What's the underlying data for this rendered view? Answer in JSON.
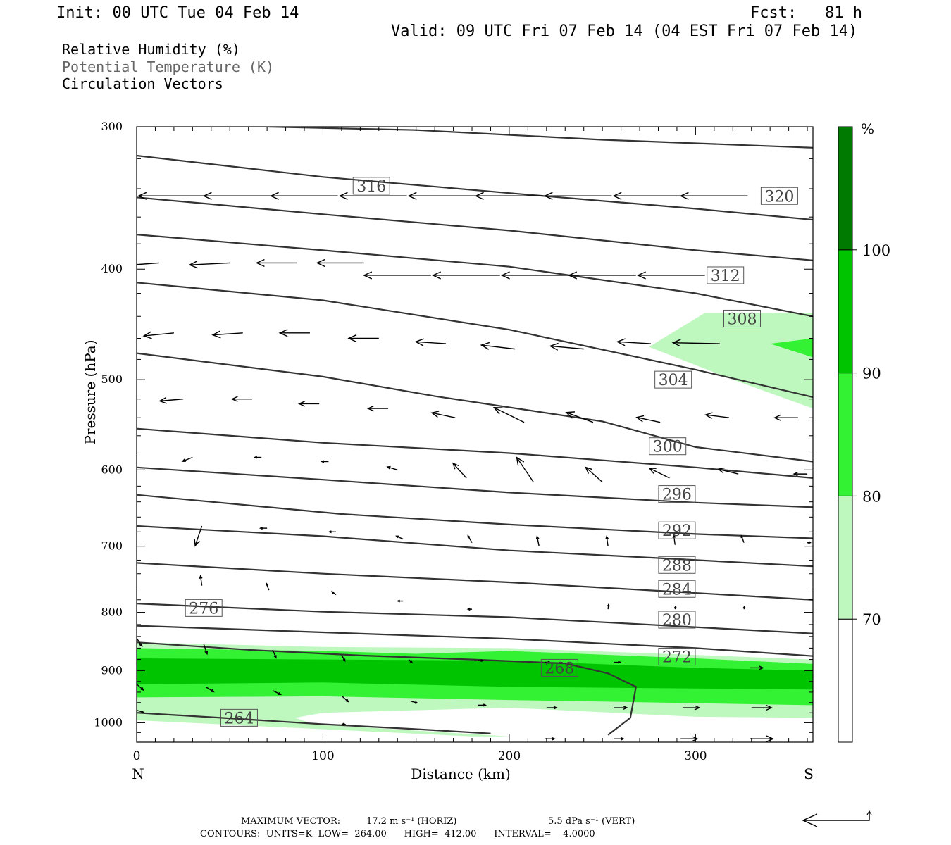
{
  "header": {
    "init": "Init: 00 UTC Tue 04 Feb 14",
    "fcst": "Fcst:   81 h",
    "valid": "Valid: 09 UTC Fri 07 Feb 14 (04 EST Fri 07 Feb 14)"
  },
  "legend": {
    "rh": "Relative Humidity (%)",
    "theta": "Potential Temperature (K)",
    "vectors": "Circulation Vectors"
  },
  "chart_data": {
    "type": "cross-section",
    "xlabel": "Distance (km)",
    "ylabel": "Pressure (hPa)",
    "xlim": [
      0,
      363
    ],
    "ylim": [
      1040,
      300
    ],
    "y_scale": "log",
    "x_ticks": [
      0,
      100,
      200,
      300
    ],
    "x_tick_labels": [
      "0",
      "100",
      "200",
      "300"
    ],
    "y_ticks": [
      300,
      400,
      500,
      600,
      700,
      800,
      900,
      1000
    ],
    "y_tick_labels": [
      "300",
      "400",
      "500",
      "600",
      "700",
      "800",
      "900",
      "1000"
    ],
    "end_labels": {
      "left": "N",
      "right": "S"
    },
    "colorbar": {
      "unit": "%",
      "levels": [
        70,
        80,
        90,
        100
      ],
      "level_labels": [
        "70",
        "80",
        "90",
        "100"
      ],
      "colors": [
        "#ffffff",
        "#bff8bf",
        "#33f133",
        "#00c400",
        "#007a00"
      ]
    },
    "theta_contours": [
      {
        "label": "264",
        "label_x": 55,
        "label_p": 990,
        "points": [
          [
            0,
            980
          ],
          [
            50,
            991
          ],
          [
            100,
            1003
          ],
          [
            150,
            1013
          ],
          [
            190,
            1022
          ]
        ]
      },
      {
        "label": "268",
        "label_x": 227,
        "label_p": 895,
        "points": [
          [
            0,
            850
          ],
          [
            60,
            863
          ],
          [
            120,
            873
          ],
          [
            180,
            880
          ],
          [
            230,
            887
          ],
          [
            253,
            905
          ],
          [
            268,
            930
          ],
          [
            265,
            990
          ],
          [
            253,
            1025
          ]
        ]
      },
      {
        "label": "272",
        "label_x": 290,
        "label_p": 875,
        "points": [
          [
            0,
            822
          ],
          [
            100,
            833
          ],
          [
            200,
            844
          ],
          [
            300,
            860
          ],
          [
            363,
            874
          ]
        ]
      },
      {
        "label": "276",
        "label_x": 36,
        "label_p": 793,
        "points": [
          [
            0,
            786
          ],
          [
            100,
            799
          ],
          [
            200,
            808
          ],
          [
            280,
            821
          ],
          [
            363,
            835
          ]
        ]
      },
      {
        "label": "280",
        "label_x": 290,
        "label_p": 812,
        "points": [
          [
            0,
            724
          ],
          [
            100,
            740
          ],
          [
            200,
            753
          ],
          [
            280,
            766
          ],
          [
            363,
            780
          ]
        ]
      },
      {
        "label": "284",
        "label_x": 290,
        "label_p": 763,
        "points": [
          [
            0,
            672
          ],
          [
            100,
            686
          ],
          [
            200,
            706
          ],
          [
            280,
            717
          ],
          [
            363,
            729
          ]
        ]
      },
      {
        "label": "288",
        "label_x": 290,
        "label_p": 727,
        "points": [
          [
            0,
            631
          ],
          [
            110,
            656
          ],
          [
            200,
            670
          ],
          [
            300,
            683
          ],
          [
            363,
            689
          ]
        ]
      },
      {
        "label": "292",
        "label_x": 290,
        "label_p": 678,
        "points": [
          [
            0,
            597
          ],
          [
            100,
            612
          ],
          [
            200,
            628
          ],
          [
            300,
            641
          ],
          [
            363,
            647
          ]
        ]
      },
      {
        "label": "296",
        "label_x": 290,
        "label_p": 630,
        "points": [
          [
            0,
            552
          ],
          [
            100,
            568
          ],
          [
            200,
            580
          ],
          [
            300,
            597
          ],
          [
            363,
            610
          ]
        ]
      },
      {
        "label": "300",
        "label_x": 285,
        "label_p": 572,
        "points": [
          [
            0,
            474
          ],
          [
            100,
            497
          ],
          [
            160,
            517
          ],
          [
            250,
            544
          ],
          [
            300,
            573
          ],
          [
            363,
            590
          ]
        ]
      },
      {
        "label": "304",
        "label_x": 288,
        "label_p": 500,
        "points": [
          [
            0,
            411
          ],
          [
            100,
            426
          ],
          [
            200,
            452
          ],
          [
            300,
            490
          ],
          [
            363,
            518
          ]
        ]
      },
      {
        "label": "308",
        "label_x": 325,
        "label_p": 442,
        "points": [
          [
            0,
            373
          ],
          [
            100,
            385
          ],
          [
            200,
            398
          ],
          [
            300,
            420
          ],
          [
            363,
            440
          ]
        ]
      },
      {
        "label": "312",
        "label_x": 316,
        "label_p": 405,
        "points": [
          [
            0,
            346
          ],
          [
            100,
            358
          ],
          [
            200,
            370
          ],
          [
            300,
            385
          ],
          [
            363,
            393
          ]
        ]
      },
      {
        "label": "316",
        "label_x": 126,
        "label_p": 338,
        "points": [
          [
            0,
            318
          ],
          [
            100,
            332
          ],
          [
            200,
            343
          ],
          [
            300,
            354
          ],
          [
            363,
            362
          ]
        ]
      },
      {
        "label": "320",
        "label_x": 345,
        "label_p": 345,
        "points": [
          [
            70,
            300
          ],
          [
            150,
            302
          ],
          [
            250,
            308
          ],
          [
            363,
            313
          ]
        ]
      }
    ],
    "rh_regions": [
      {
        "level": 70,
        "shape": "lower-band",
        "outline": [
          [
            0,
            850
          ],
          [
            100,
            858
          ],
          [
            200,
            860
          ],
          [
            300,
            872
          ],
          [
            363,
            880
          ],
          [
            363,
            990
          ],
          [
            300,
            988
          ],
          [
            200,
            970
          ],
          [
            100,
            980
          ],
          [
            85,
            990
          ],
          [
            95,
            1003
          ],
          [
            200,
            1028
          ],
          [
            180,
            1028
          ],
          [
            0,
            995
          ]
        ]
      },
      {
        "level": 80,
        "shape": "lower-band",
        "outline": [
          [
            0,
            860
          ],
          [
            100,
            865
          ],
          [
            150,
            870
          ],
          [
            200,
            865
          ],
          [
            300,
            878
          ],
          [
            363,
            888
          ],
          [
            363,
            965
          ],
          [
            200,
            955
          ],
          [
            100,
            948
          ],
          [
            0,
            950
          ]
        ]
      },
      {
        "level": 90,
        "shape": "lower-band",
        "outline": [
          [
            0,
            878
          ],
          [
            100,
            880
          ],
          [
            200,
            882
          ],
          [
            300,
            895
          ],
          [
            363,
            900
          ],
          [
            363,
            935
          ],
          [
            200,
            930
          ],
          [
            100,
            922
          ],
          [
            0,
            925
          ]
        ]
      },
      {
        "level": 70,
        "shape": "upper-tongue",
        "outline": [
          [
            363,
            437
          ],
          [
            305,
            437
          ],
          [
            275,
            468
          ],
          [
            320,
            500
          ],
          [
            363,
            530
          ]
        ]
      },
      {
        "level": 80,
        "shape": "upper-tongue",
        "outline": [
          [
            363,
            460
          ],
          [
            340,
            465
          ],
          [
            363,
            478
          ]
        ]
      }
    ],
    "vectors": [
      {
        "x": 0,
        "p": 345,
        "u": -10.0,
        "w": 0.4
      },
      {
        "x": 37,
        "p": 345,
        "u": -10.0,
        "w": 0
      },
      {
        "x": 72,
        "p": 345,
        "u": -10.0,
        "w": 0
      },
      {
        "x": 108,
        "p": 345,
        "u": -10.0,
        "w": 0
      },
      {
        "x": 145,
        "p": 345,
        "u": -10.0,
        "w": 0
      },
      {
        "x": 182,
        "p": 345,
        "u": -10.0,
        "w": 0
      },
      {
        "x": 218,
        "p": 345,
        "u": -10.0,
        "w": 0
      },
      {
        "x": 255,
        "p": 345,
        "u": -10.0,
        "w": 0
      },
      {
        "x": 292,
        "p": 345,
        "u": -10.0,
        "w": 0
      },
      {
        "x": 328,
        "p": 345,
        "u": -10.0,
        "w": 0
      },
      {
        "x": 12,
        "p": 395,
        "u": -6.0,
        "w": 0.3
      },
      {
        "x": 50,
        "p": 395,
        "u": -6.0,
        "w": 0.2
      },
      {
        "x": 86,
        "p": 395,
        "u": -6.0,
        "w": 0
      },
      {
        "x": 122,
        "p": 395,
        "u": -7.0,
        "w": 0
      },
      {
        "x": 158,
        "p": 405,
        "u": -10.0,
        "w": 0
      },
      {
        "x": 195,
        "p": 405,
        "u": -10.0,
        "w": 0
      },
      {
        "x": 232,
        "p": 405,
        "u": -10.0,
        "w": 0
      },
      {
        "x": 268,
        "p": 405,
        "u": -10.0,
        "w": 0
      },
      {
        "x": 305,
        "p": 405,
        "u": -10.0,
        "w": 0
      },
      {
        "x": 20,
        "p": 455,
        "u": -4.5,
        "w": 0.3
      },
      {
        "x": 57,
        "p": 455,
        "u": -4.5,
        "w": 0.2
      },
      {
        "x": 93,
        "p": 455,
        "u": -4.5,
        "w": 0
      },
      {
        "x": 130,
        "p": 460,
        "u": -4.5,
        "w": 0
      },
      {
        "x": 166,
        "p": 465,
        "u": -4.5,
        "w": -0.2
      },
      {
        "x": 203,
        "p": 470,
        "u": -5.0,
        "w": -0.4
      },
      {
        "x": 240,
        "p": 470,
        "u": -5.0,
        "w": -0.3
      },
      {
        "x": 276,
        "p": 465,
        "u": -5.0,
        "w": -0.2
      },
      {
        "x": 313,
        "p": 465,
        "u": -7.0,
        "w": -0.1
      },
      {
        "x": 25,
        "p": 520,
        "u": -3.5,
        "w": 0.2
      },
      {
        "x": 62,
        "p": 520,
        "u": -3.0,
        "w": 0
      },
      {
        "x": 98,
        "p": 525,
        "u": -3.0,
        "w": 0
      },
      {
        "x": 135,
        "p": 530,
        "u": -3.0,
        "w": 0
      },
      {
        "x": 171,
        "p": 540,
        "u": -3.5,
        "w": -0.5
      },
      {
        "x": 208,
        "p": 545,
        "u": -4.5,
        "w": -1.5
      },
      {
        "x": 245,
        "p": 545,
        "u": -4.0,
        "w": -1.0
      },
      {
        "x": 281,
        "p": 545,
        "u": -3.5,
        "w": -0.5
      },
      {
        "x": 318,
        "p": 540,
        "u": -3.5,
        "w": -0.3
      },
      {
        "x": 355,
        "p": 540,
        "u": -3.5,
        "w": 0
      },
      {
        "x": 30,
        "p": 585,
        "u": -1.5,
        "w": 0.4
      },
      {
        "x": 67,
        "p": 585,
        "u": -1.0,
        "w": 0
      },
      {
        "x": 103,
        "p": 590,
        "u": -1.0,
        "w": 0
      },
      {
        "x": 140,
        "p": 600,
        "u": -1.5,
        "w": -0.3
      },
      {
        "x": 177,
        "p": 610,
        "u": -2.0,
        "w": -1.5
      },
      {
        "x": 213,
        "p": 615,
        "u": -2.5,
        "w": -2.5
      },
      {
        "x": 250,
        "p": 615,
        "u": -2.5,
        "w": -1.5
      },
      {
        "x": 286,
        "p": 610,
        "u": -3.0,
        "w": -1.0
      },
      {
        "x": 323,
        "p": 605,
        "u": -3.0,
        "w": -0.5
      },
      {
        "x": 360,
        "p": 605,
        "u": -2.0,
        "w": 0
      },
      {
        "x": 35,
        "p": 672,
        "u": -1.0,
        "w": 2.0
      },
      {
        "x": 70,
        "p": 675,
        "u": -1.0,
        "w": 0
      },
      {
        "x": 107,
        "p": 680,
        "u": -1.0,
        "w": 0
      },
      {
        "x": 143,
        "p": 690,
        "u": -1.0,
        "w": -0.3
      },
      {
        "x": 180,
        "p": 695,
        "u": -0.6,
        "w": -0.7
      },
      {
        "x": 216,
        "p": 700,
        "u": -0.3,
        "w": -1.0
      },
      {
        "x": 253,
        "p": 700,
        "u": -0.2,
        "w": -1.0
      },
      {
        "x": 289,
        "p": 698,
        "u": -0.2,
        "w": -1.0
      },
      {
        "x": 326,
        "p": 695,
        "u": -0.4,
        "w": -0.7
      },
      {
        "x": 362,
        "p": 695,
        "u": -0.5,
        "w": 0
      },
      {
        "x": 35,
        "p": 758,
        "u": -0.2,
        "w": -1.0
      },
      {
        "x": 71,
        "p": 765,
        "u": -0.4,
        "w": -0.7
      },
      {
        "x": 107,
        "p": 772,
        "u": -0.6,
        "w": -0.3
      },
      {
        "x": 143,
        "p": 782,
        "u": -0.8,
        "w": 0
      },
      {
        "x": 180,
        "p": 795,
        "u": -0.6,
        "w": 0
      },
      {
        "x": 253,
        "p": 795,
        "u": 0.1,
        "w": -0.5
      },
      {
        "x": 289,
        "p": 795,
        "u": 0.1,
        "w": -0.3
      },
      {
        "x": 326,
        "p": 795,
        "u": 0.1,
        "w": -0.3
      },
      {
        "x": 0,
        "p": 843,
        "u": 0.8,
        "w": 0.8
      },
      {
        "x": 36,
        "p": 853,
        "u": 0.5,
        "w": 1.0
      },
      {
        "x": 73,
        "p": 863,
        "u": 0.5,
        "w": 0.8
      },
      {
        "x": 110,
        "p": 872,
        "u": 0.5,
        "w": 0.6
      },
      {
        "x": 146,
        "p": 880,
        "u": 0.5,
        "w": 0.3
      },
      {
        "x": 183,
        "p": 882,
        "u": 0.8,
        "w": 0
      },
      {
        "x": 219,
        "p": 885,
        "u": 0.8,
        "w": 0
      },
      {
        "x": 256,
        "p": 885,
        "u": 1.0,
        "w": 0
      },
      {
        "x": 329,
        "p": 895,
        "u": 2.0,
        "w": 0
      },
      {
        "x": 0,
        "p": 925,
        "u": 1.0,
        "w": 0.6
      },
      {
        "x": 37,
        "p": 930,
        "u": 1.2,
        "w": 0.5
      },
      {
        "x": 73,
        "p": 937,
        "u": 1.2,
        "w": 0.4
      },
      {
        "x": 110,
        "p": 947,
        "u": 1.0,
        "w": 0.6
      },
      {
        "x": 147,
        "p": 957,
        "u": 1.0,
        "w": 0.2
      },
      {
        "x": 183,
        "p": 965,
        "u": 1.2,
        "w": 0
      },
      {
        "x": 220,
        "p": 970,
        "u": 1.5,
        "w": 0
      },
      {
        "x": 256,
        "p": 970,
        "u": 2.0,
        "w": 0
      },
      {
        "x": 293,
        "p": 970,
        "u": 2.5,
        "w": 0
      },
      {
        "x": 330,
        "p": 970,
        "u": 3.0,
        "w": 0
      },
      {
        "x": 0,
        "p": 975,
        "u": 1.0,
        "w": 0.2
      },
      {
        "x": 110,
        "p": 1003,
        "u": 0.5,
        "w": 0
      },
      {
        "x": 219,
        "p": 1033,
        "u": 1.5,
        "w": 0
      },
      {
        "x": 256,
        "p": 1033,
        "u": 1.5,
        "w": 0
      },
      {
        "x": 292,
        "p": 1033,
        "u": 2.5,
        "w": 0
      },
      {
        "x": 329,
        "p": 1033,
        "u": 3.5,
        "w": 0
      }
    ]
  },
  "footer": {
    "max_vector_label": "MAXIMUM VECTOR:",
    "max_horiz": "17.2 m s⁻¹ (HORIZ)",
    "max_vert": "5.5 dPa s⁻¹ (VERT)",
    "contours_line": "CONTOURS:  UNITS=K  LOW=  264.00      HIGH=  412.00      INTERVAL=    4.0000"
  }
}
